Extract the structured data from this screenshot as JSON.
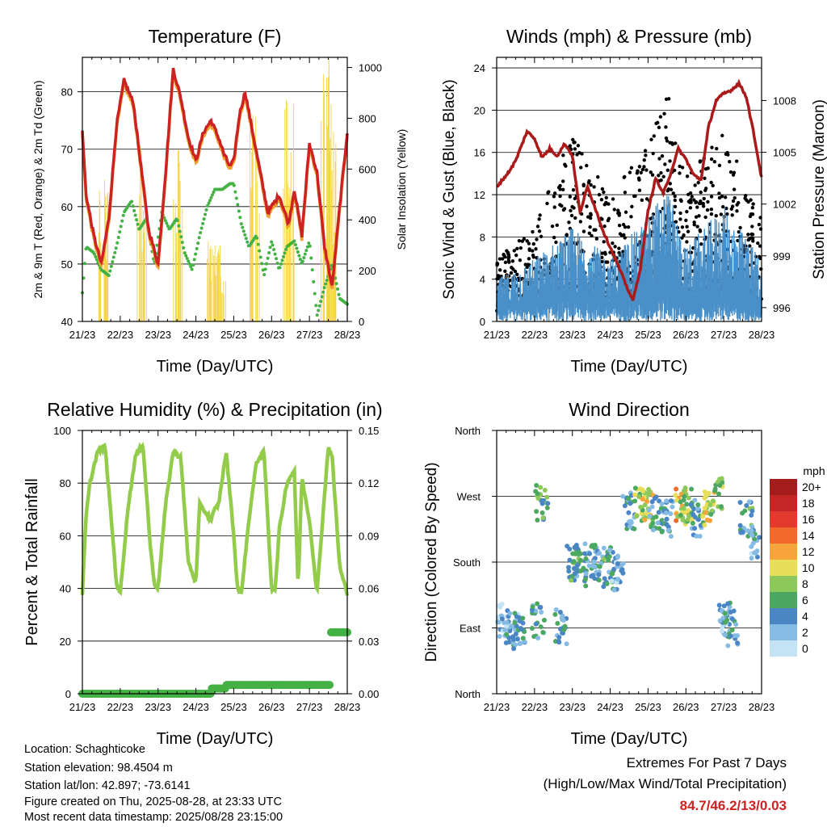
{
  "chart_data": [
    {
      "type": "line",
      "title": "Temperature (F)",
      "xlabel": "Time (Day/UTC)",
      "ylabel": "2m & 9m T (Red, Orange) & 2m Td (Green)",
      "ylabel_right": "Solar Insolation (Yellow)",
      "x_ticks": [
        "21/23",
        "22/23",
        "23/23",
        "24/23",
        "25/23",
        "26/23",
        "27/23",
        "28/23"
      ],
      "ylim": [
        40,
        86
      ],
      "yticks": [
        40,
        50,
        60,
        70,
        80
      ],
      "ylim_right": [
        0,
        1040
      ],
      "yticks_right": [
        0,
        200,
        400,
        600,
        800,
        1000
      ],
      "grid_y": [
        50,
        60,
        70,
        80
      ],
      "colors": {
        "t2m": "#cc2222",
        "t9m": "#f0a030",
        "td": "#44b144",
        "solar": "#f5d442"
      },
      "series": [
        {
          "key": "t2m",
          "x": [
            0,
            0.1,
            0.3,
            0.5,
            0.7,
            0.9,
            1.1,
            1.35,
            1.55,
            1.75,
            2.0,
            2.2,
            2.4,
            2.6,
            2.8,
            3.0,
            3.2,
            3.4,
            3.6,
            3.75,
            3.9,
            4.0,
            4.15,
            4.3,
            4.5,
            4.7,
            4.9,
            5.2,
            5.45,
            5.6,
            5.8,
            6.0,
            6.2,
            6.4,
            6.6,
            6.8,
            7.0
          ],
          "values": [
            73,
            62,
            55,
            50,
            58,
            74,
            82,
            78,
            67,
            56,
            50,
            66,
            84,
            79,
            72,
            68,
            73,
            75,
            72,
            69,
            67,
            68,
            76,
            80,
            73,
            66,
            59,
            62,
            57,
            63,
            55,
            71,
            66,
            53,
            46,
            60,
            73
          ]
        },
        {
          "key": "td",
          "x": [
            0,
            0.1,
            0.3,
            0.5,
            0.7,
            0.9,
            1.1,
            1.3,
            1.5,
            1.7,
            1.9,
            2.1,
            2.3,
            2.5,
            2.7,
            2.9,
            3.1,
            3.3,
            3.5,
            3.7,
            3.9,
            4.0,
            4.2,
            4.4,
            4.6,
            4.8,
            5.0,
            5.2,
            5.4,
            5.6,
            5.8,
            6.0,
            6.2,
            6.4,
            6.6,
            6.8,
            7.0
          ],
          "values": [
            45,
            53,
            52,
            49,
            48,
            53,
            59,
            61,
            56,
            58,
            50,
            59,
            56,
            58,
            52,
            49,
            55,
            60,
            63,
            63,
            64,
            64,
            57,
            53,
            55,
            48,
            54,
            49,
            53,
            54,
            50,
            54,
            41,
            46,
            50,
            44,
            43
          ]
        },
        {
          "key": "solar",
          "peaks": [
            {
              "x": 0.55,
              "v": 560
            },
            {
              "x": 1.55,
              "v": 760
            },
            {
              "x": 2.55,
              "v": 700
            },
            {
              "x": 3.45,
              "v": 330
            },
            {
              "x": 3.55,
              "v": 300
            },
            {
              "x": 3.65,
              "v": 200
            },
            {
              "x": 4.55,
              "v": 820
            },
            {
              "x": 5.45,
              "v": 900
            },
            {
              "x": 6.45,
              "v": 1040
            },
            {
              "x": 6.6,
              "v": 800
            }
          ]
        }
      ]
    },
    {
      "type": "line",
      "title": "Winds (mph) & Pressure (mb)",
      "xlabel": "Time (Day/UTC)",
      "ylabel": "Sonic Wind & Gust (Blue, Black)",
      "ylabel_right": "Station Pressure (Maroon)",
      "x_ticks": [
        "21/23",
        "22/23",
        "23/23",
        "24/23",
        "25/23",
        "26/23",
        "27/23",
        "28/23"
      ],
      "ylim": [
        0,
        25
      ],
      "yticks": [
        0,
        4,
        8,
        12,
        16,
        20,
        24
      ],
      "ylim_right": [
        995.2,
        1010.5
      ],
      "yticks_right": [
        996,
        999,
        1002,
        1005,
        1008
      ],
      "grid_y": [
        4,
        8,
        12,
        16,
        20,
        24
      ],
      "colors": {
        "wind": "#4a90c8",
        "gust": "#000000",
        "pressure": "#aa1a1a"
      },
      "series": [
        {
          "key": "pressure",
          "x": [
            0,
            0.3,
            0.5,
            0.8,
            1.0,
            1.2,
            1.4,
            1.6,
            1.8,
            2.0,
            2.2,
            2.4,
            2.6,
            2.8,
            3.0,
            3.2,
            3.4,
            3.6,
            3.8,
            4.0,
            4.2,
            4.4,
            4.6,
            4.8,
            5.0,
            5.2,
            5.4,
            5.6,
            5.8,
            6.0,
            6.2,
            6.4,
            6.6,
            6.8,
            7.0
          ],
          "values": [
            1003,
            1003.8,
            1004.5,
            1006.2,
            1005.8,
            1004.7,
            1005.2,
            1004.8,
            1005.5,
            1004.8,
            1001.5,
            1003,
            1001.8,
            1000.5,
            999.5,
            998.5,
            997.4,
            996.4,
            998.3,
            1001.6,
            1003.5,
            1002.6,
            1003.8,
            1005.2,
            1004.6,
            1003.7,
            1003.4,
            1006.5,
            1008,
            1008.4,
            1008.6,
            1009,
            1008.2,
            1006,
            1003.5
          ]
        },
        {
          "key": "wind",
          "envelope": [
            {
              "x": 0,
              "lo": 1,
              "hi": 4
            },
            {
              "x": 1,
              "lo": 1.5,
              "hi": 6
            },
            {
              "x": 2,
              "lo": 2,
              "hi": 9
            },
            {
              "x": 3,
              "lo": 1.5,
              "hi": 6
            },
            {
              "x": 4,
              "lo": 2,
              "hi": 10
            },
            {
              "x": 4.5,
              "lo": 3,
              "hi": 13
            },
            {
              "x": 5,
              "lo": 1,
              "hi": 7
            },
            {
              "x": 6,
              "lo": 2,
              "hi": 11
            },
            {
              "x": 7,
              "lo": 1,
              "hi": 6
            }
          ]
        },
        {
          "key": "gust",
          "envelope": [
            {
              "x": 0,
              "lo": 1,
              "hi": 6
            },
            {
              "x": 1,
              "lo": 2,
              "hi": 9
            },
            {
              "x": 2,
              "lo": 3,
              "hi": 18
            },
            {
              "x": 3,
              "lo": 2,
              "hi": 12
            },
            {
              "x": 4,
              "lo": 3,
              "hi": 17
            },
            {
              "x": 4.5,
              "lo": 5,
              "hi": 23
            },
            {
              "x": 5,
              "lo": 2,
              "hi": 14
            },
            {
              "x": 6,
              "lo": 3,
              "hi": 18
            },
            {
              "x": 7,
              "lo": 2,
              "hi": 10
            }
          ]
        }
      ]
    },
    {
      "type": "line",
      "title": "Relative Humidity (%) & Precipitation (in)",
      "xlabel": "Time (Day/UTC)",
      "ylabel": "Percent & Total Rainfall",
      "x_ticks": [
        "21/23",
        "22/23",
        "23/23",
        "24/23",
        "25/23",
        "26/23",
        "27/23",
        "28/23"
      ],
      "ylim": [
        0,
        100
      ],
      "yticks": [
        0,
        20,
        40,
        60,
        80,
        100
      ],
      "ylim_right": [
        0,
        0.15
      ],
      "yticks_right": [
        "0.00",
        "0.03",
        "0.06",
        "0.09",
        "0.12",
        "0.15"
      ],
      "grid_y": [
        20,
        40,
        60,
        80
      ],
      "colors": {
        "rh": "#92cc4a",
        "precip": "#44b144"
      },
      "series": [
        {
          "key": "rh",
          "x": [
            0,
            0.1,
            0.2,
            0.4,
            0.6,
            0.8,
            0.9,
            1.0,
            1.2,
            1.4,
            1.6,
            1.8,
            1.9,
            2.0,
            2.2,
            2.4,
            2.6,
            2.8,
            3.0,
            3.1,
            3.2,
            3.3,
            3.4,
            3.5,
            3.6,
            3.8,
            4.0,
            4.1,
            4.2,
            4.4,
            4.6,
            4.8,
            5.0,
            5.1,
            5.2,
            5.4,
            5.6,
            5.7,
            5.8,
            6.0,
            6.2,
            6.4,
            6.5,
            6.6,
            6.8,
            7.0
          ],
          "values": [
            38,
            68,
            80,
            92,
            94,
            60,
            42,
            38,
            70,
            90,
            95,
            55,
            42,
            40,
            72,
            92,
            90,
            50,
            42,
            72,
            70,
            68,
            66,
            70,
            72,
            92,
            60,
            40,
            38,
            66,
            88,
            92,
            40,
            40,
            62,
            80,
            85,
            40,
            82,
            66,
            38,
            76,
            94,
            90,
            48,
            38
          ]
        },
        {
          "key": "precip",
          "x": [
            0,
            3.4,
            3.4,
            3.8,
            3.8,
            6.55,
            6.55,
            7.0
          ],
          "values": [
            0,
            0,
            0.003,
            0.003,
            0.005,
            0.005,
            0.035,
            0.035
          ]
        }
      ]
    },
    {
      "type": "scatter",
      "title": "Wind Direction",
      "xlabel": "Time (Day/UTC)",
      "ylabel": "Direction (Colored By Speed)",
      "x_ticks": [
        "21/23",
        "22/23",
        "23/23",
        "24/23",
        "25/23",
        "26/23",
        "27/23",
        "28/23"
      ],
      "y_ticks": [
        "North",
        "East",
        "South",
        "West",
        "North"
      ],
      "ylim": [
        0,
        360
      ],
      "grid_y": [
        90,
        180,
        270
      ],
      "colorbar_title": "mph",
      "colorbar_labels": [
        "20+",
        "18",
        "16",
        "14",
        "12",
        "10",
        "8",
        "6",
        "4",
        "2",
        "0"
      ],
      "colorbar_colors": [
        "#a51c1c",
        "#c42525",
        "#e23b2e",
        "#f26a2a",
        "#f7a53a",
        "#e9de5a",
        "#8cc95a",
        "#4ca860",
        "#4a86c4",
        "#86bce4",
        "#c4e4f6"
      ],
      "series": [
        {
          "name": "clusters",
          "points": [
            {
              "x": 0.2,
              "dir": 100,
              "spd": 2
            },
            {
              "x": 0.4,
              "dir": 90,
              "spd": 3
            },
            {
              "x": 0.6,
              "dir": 80,
              "spd": 4
            },
            {
              "x": 1.2,
              "dir": 260,
              "spd": 6
            },
            {
              "x": 1.1,
              "dir": 100,
              "spd": 4
            },
            {
              "x": 1.7,
              "dir": 90,
              "spd": 4
            },
            {
              "x": 2.0,
              "dir": 180,
              "spd": 6
            },
            {
              "x": 2.2,
              "dir": 170,
              "spd": 5
            },
            {
              "x": 2.5,
              "dir": 180,
              "spd": 4
            },
            {
              "x": 2.7,
              "dir": 170,
              "spd": 4
            },
            {
              "x": 3.0,
              "dir": 175,
              "spd": 5
            },
            {
              "x": 3.2,
              "dir": 165,
              "spd": 3
            },
            {
              "x": 3.5,
              "dir": 250,
              "spd": 4
            },
            {
              "x": 3.8,
              "dir": 260,
              "spd": 8
            },
            {
              "x": 4.0,
              "dir": 255,
              "spd": 10
            },
            {
              "x": 4.2,
              "dir": 245,
              "spd": 4
            },
            {
              "x": 4.5,
              "dir": 240,
              "spd": 4
            },
            {
              "x": 4.9,
              "dir": 255,
              "spd": 11
            },
            {
              "x": 5.0,
              "dir": 260,
              "spd": 8
            },
            {
              "x": 5.3,
              "dir": 240,
              "spd": 3
            },
            {
              "x": 5.6,
              "dir": 255,
              "spd": 10
            },
            {
              "x": 5.8,
              "dir": 270,
              "spd": 7
            },
            {
              "x": 6.0,
              "dir": 100,
              "spd": 3
            },
            {
              "x": 6.2,
              "dir": 90,
              "spd": 4
            },
            {
              "x": 6.6,
              "dir": 240,
              "spd": 5
            },
            {
              "x": 6.9,
              "dir": 200,
              "spd": 3
            }
          ]
        }
      ]
    }
  ],
  "footer": {
    "location": "Location: Schaghticoke",
    "elevation": "Station elevation: 98.4504 m",
    "latlon": "Station lat/lon: 42.897; -73.6141",
    "created": "Figure created on Thu, 2025-08-28, at 23:33 UTC",
    "recent": "Most recent data timestamp: 2025/08/28 23:15:00",
    "extremes_title": "Extremes For Past 7 Days",
    "extremes_subtitle": "(High/Low/Max Wind/Total Precipitation)",
    "extremes_values": "84.7/46.2/13/0.03",
    "extremes_color": "#cc2222"
  }
}
